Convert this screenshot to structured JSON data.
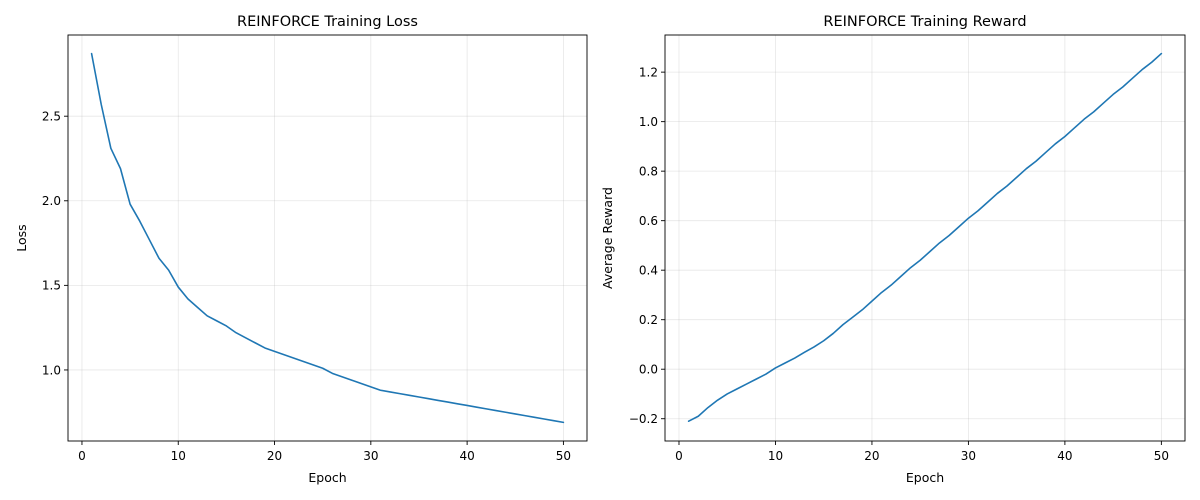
{
  "colors": {
    "series": "#1f77b4",
    "background": "#ffffff"
  },
  "chart_data": [
    {
      "type": "line",
      "title": "REINFORCE Training Loss",
      "xlabel": "Epoch",
      "ylabel": "Loss",
      "xlim": [
        -1.45,
        52.45
      ],
      "ylim": [
        0.58,
        2.98
      ],
      "xticks": [
        0,
        10,
        20,
        30,
        40,
        50
      ],
      "yticks": [
        1.0,
        1.5,
        2.0,
        2.5
      ],
      "ytick_labels": [
        "1.0",
        "1.5",
        "2.0",
        "2.5"
      ],
      "grid": true,
      "series": [
        {
          "x": [
            1,
            2,
            3,
            4,
            5,
            6,
            7,
            8,
            9,
            10,
            11,
            12,
            13,
            14,
            15,
            16,
            17,
            18,
            19,
            20,
            21,
            22,
            23,
            24,
            25,
            26,
            27,
            28,
            29,
            30,
            31,
            32,
            33,
            34,
            35,
            36,
            37,
            38,
            39,
            40,
            41,
            42,
            43,
            44,
            45,
            46,
            47,
            48,
            49,
            50
          ],
          "values": [
            2.87,
            2.57,
            2.31,
            2.19,
            1.98,
            1.88,
            1.77,
            1.66,
            1.59,
            1.49,
            1.42,
            1.37,
            1.32,
            1.29,
            1.26,
            1.22,
            1.19,
            1.16,
            1.13,
            1.11,
            1.09,
            1.07,
            1.05,
            1.03,
            1.01,
            0.98,
            0.96,
            0.94,
            0.92,
            0.9,
            0.88,
            0.87,
            0.86,
            0.85,
            0.84,
            0.83,
            0.82,
            0.81,
            0.8,
            0.79,
            0.78,
            0.77,
            0.76,
            0.75,
            0.74,
            0.73,
            0.72,
            0.71,
            0.7,
            0.69
          ]
        }
      ]
    },
    {
      "type": "line",
      "title": "REINFORCE Training Reward",
      "xlabel": "Epoch",
      "ylabel": "Average Reward",
      "xlim": [
        -1.45,
        52.45
      ],
      "ylim": [
        -0.29,
        1.35
      ],
      "xticks": [
        0,
        10,
        20,
        30,
        40,
        50
      ],
      "yticks": [
        -0.2,
        0.0,
        0.2,
        0.4,
        0.6,
        0.8,
        1.0,
        1.2
      ],
      "ytick_labels": [
        "−0.2",
        "0.0",
        "0.2",
        "0.4",
        "0.6",
        "0.8",
        "1.0",
        "1.2"
      ],
      "grid": true,
      "series": [
        {
          "x": [
            1,
            2,
            3,
            4,
            5,
            6,
            7,
            8,
            9,
            10,
            11,
            12,
            13,
            14,
            15,
            16,
            17,
            18,
            19,
            20,
            21,
            22,
            23,
            24,
            25,
            26,
            27,
            28,
            29,
            30,
            31,
            32,
            33,
            34,
            35,
            36,
            37,
            38,
            39,
            40,
            41,
            42,
            43,
            44,
            45,
            46,
            47,
            48,
            49,
            50
          ],
          "values": [
            -0.21,
            -0.19,
            -0.155,
            -0.125,
            -0.1,
            -0.08,
            -0.06,
            -0.04,
            -0.02,
            0.005,
            0.025,
            0.045,
            0.068,
            0.09,
            0.115,
            0.145,
            0.18,
            0.21,
            0.24,
            0.275,
            0.31,
            0.34,
            0.375,
            0.41,
            0.44,
            0.475,
            0.51,
            0.54,
            0.575,
            0.61,
            0.64,
            0.675,
            0.71,
            0.74,
            0.775,
            0.81,
            0.84,
            0.875,
            0.91,
            0.94,
            0.975,
            1.01,
            1.04,
            1.075,
            1.11,
            1.14,
            1.175,
            1.21,
            1.24,
            1.275
          ]
        }
      ]
    }
  ]
}
